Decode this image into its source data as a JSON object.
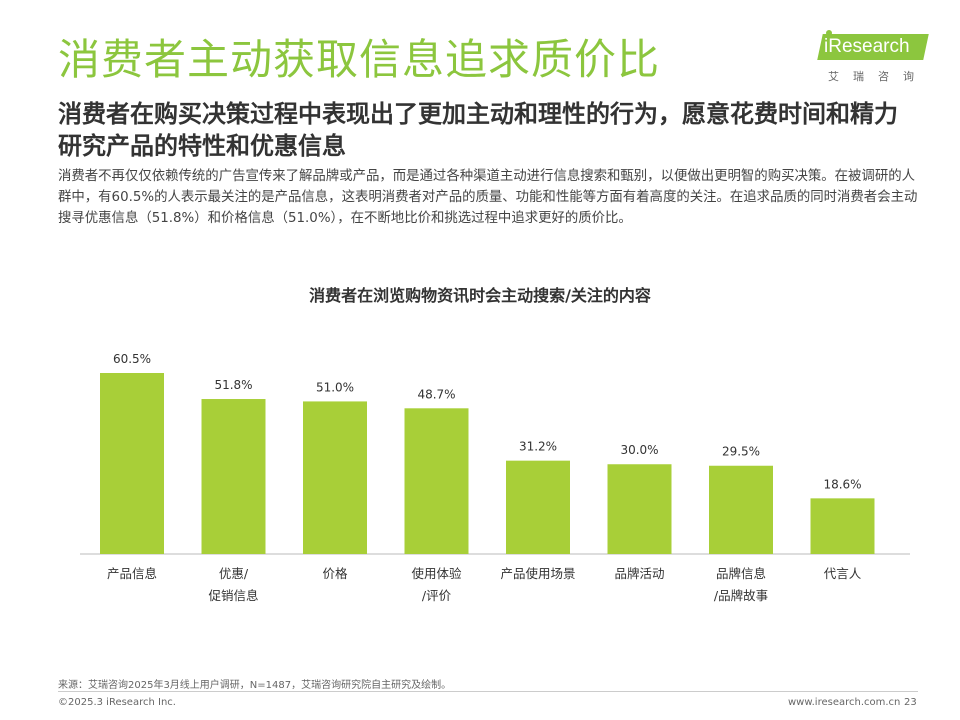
{
  "header": {
    "title": "消费者主动获取信息追求质价比",
    "logo_text": "iResearch",
    "logo_cn": "艾瑞咨询"
  },
  "subtitle": "消费者在购买决策过程中表现出了更加主动和理性的行为，愿意花费时间和精力研究产品的特性和优惠信息",
  "body_text": "消费者不再仅仅依赖传统的广告宣传来了解品牌或产品，而是通过各种渠道主动进行信息搜索和甄别，以便做出更明智的购买决策。在被调研的人群中，有60.5%的人表示最关注的是产品信息，这表明消费者对产品的质量、功能和性能等方面有着高度的关注。在追求品质的同时消费者会主动搜寻优惠信息（51.8%）和价格信息（51.0%），在不断地比价和挑选过程中追求更好的质价比。",
  "chart_data": {
    "type": "bar",
    "title": "消费者在浏览购物资讯时会主动搜索/关注的内容",
    "categories": [
      "产品信息",
      "优惠/促销信息",
      "价格",
      "使用体验/评价",
      "产品使用场景",
      "品牌活动",
      "品牌信息/品牌故事",
      "代言人"
    ],
    "category_lines": [
      [
        "产品信息"
      ],
      [
        "优惠/",
        "促销信息"
      ],
      [
        "价格"
      ],
      [
        "使用体验",
        "/评价"
      ],
      [
        "产品使用场景"
      ],
      [
        "品牌活动"
      ],
      [
        "品牌信息",
        "/品牌故事"
      ],
      [
        "代言人"
      ]
    ],
    "values": [
      60.5,
      51.8,
      51.0,
      48.7,
      31.2,
      30.0,
      29.5,
      18.6
    ],
    "value_labels": [
      "60.5%",
      "51.8%",
      "51.0%",
      "48.7%",
      "31.2%",
      "30.0%",
      "29.5%",
      "18.6%"
    ],
    "ylim": [
      0,
      60.5
    ],
    "bar_color": "#a8cf38",
    "grid": false
  },
  "footer": {
    "source": "来源：艾瑞咨询2025年3月线上用户调研，N=1487，艾瑞咨询研究院自主研究及绘制。",
    "copyright": "©2025.3 iResearch Inc.",
    "website": "www.iresearch.com.cn",
    "page_number": "23"
  }
}
